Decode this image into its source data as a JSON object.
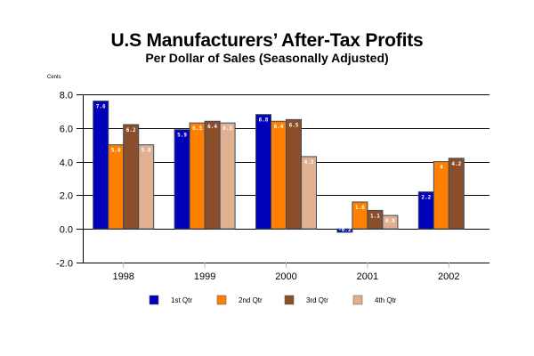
{
  "chart_data": {
    "type": "bar",
    "title": "U.S Manufacturers’ After-Tax Profits",
    "subtitle": "Per Dollar of Sales (Seasonally Adjusted)",
    "xlabel": "",
    "ylabel": "Cents",
    "ylim": [
      -2.0,
      8.0
    ],
    "yticks": [
      8.0,
      6.0,
      4.0,
      2.0,
      0.0,
      -2.0
    ],
    "ytick_labels": [
      "8.0",
      "6.0",
      "4.0",
      "2.0",
      "0.0",
      "-2.0"
    ],
    "grid": true,
    "legend_position": "bottom",
    "categories": [
      "1998",
      "1999",
      "2000",
      "2001",
      "2002"
    ],
    "series": [
      {
        "name": "1st Qtr",
        "color": "#0000B8",
        "values": [
          7.6,
          5.9,
          6.8,
          -0.2,
          2.2
        ],
        "labels": [
          "7.6",
          "5.9",
          "6.8",
          "-0.2",
          "2.2"
        ]
      },
      {
        "name": "2nd Qtr",
        "color": "#FF8000",
        "values": [
          5.0,
          6.3,
          6.4,
          1.6,
          4.0
        ],
        "labels": [
          "5.0",
          "6.3",
          "6.4",
          "1.6",
          "4"
        ]
      },
      {
        "name": "3rd Qtr",
        "color": "#8B4E2B",
        "values": [
          6.2,
          6.4,
          6.5,
          1.1,
          4.2
        ],
        "labels": [
          "6.2",
          "6.4",
          "6.5",
          "1.1",
          "4.2"
        ]
      },
      {
        "name": "4th Qtr",
        "color": "#E0B090",
        "values": [
          5.0,
          6.3,
          4.3,
          0.8,
          null
        ],
        "labels": [
          "5.0",
          "6.3",
          "4.3",
          "0.8",
          null
        ]
      }
    ]
  }
}
